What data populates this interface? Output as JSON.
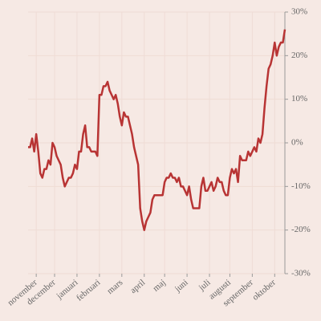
{
  "chart_data": {
    "type": "line",
    "series": [
      {
        "color": "#b83434",
        "values": [
          -1,
          -1,
          1,
          -2,
          2,
          -2,
          -7,
          -8,
          -6,
          -6,
          -4,
          -5,
          0,
          -1,
          -3,
          -4,
          -5,
          -8,
          -10,
          -9,
          -8,
          -8,
          -7,
          -5,
          -6,
          -2,
          -2,
          2,
          4,
          -1,
          -1,
          -2,
          -2,
          -2,
          -3,
          11,
          11,
          13,
          13,
          14,
          12,
          11,
          10,
          11,
          9,
          6,
          4,
          7,
          6,
          6,
          4,
          2,
          -1,
          -3,
          -5,
          -15,
          -18,
          -20,
          -18,
          -17,
          -16,
          -13,
          -12,
          -12,
          -12,
          -12,
          -12,
          -9,
          -8,
          -8,
          -7,
          -8,
          -8,
          -9,
          -8,
          -10,
          -10,
          -11,
          -12,
          -10,
          -13,
          -15,
          -15,
          -15,
          -15,
          -10,
          -8,
          -11,
          -11,
          -10,
          -9,
          -11,
          -10,
          -8,
          -9,
          -9,
          -11,
          -12,
          -12,
          -8,
          -6,
          -7,
          -6,
          -9,
          -3,
          -4,
          -4,
          -4,
          -2,
          -3,
          -2,
          -1,
          -2,
          1,
          0,
          2,
          8,
          13,
          17,
          18,
          20,
          23,
          20,
          22,
          23,
          23,
          26
        ]
      }
    ],
    "xlim": [
      0,
      126
    ],
    "xticks": [
      {
        "value": 4,
        "label": "november"
      },
      {
        "value": 13,
        "label": "december"
      },
      {
        "value": 24,
        "label": "januari"
      },
      {
        "value": 35,
        "label": "februari"
      },
      {
        "value": 46,
        "label": "mars"
      },
      {
        "value": 57,
        "label": "april"
      },
      {
        "value": 67,
        "label": "maj"
      },
      {
        "value": 78,
        "label": "juni"
      },
      {
        "value": 89,
        "label": "juli"
      },
      {
        "value": 99,
        "label": "augusti"
      },
      {
        "value": 110,
        "label": "september"
      },
      {
        "value": 121,
        "label": "oktober"
      }
    ],
    "ylim": [
      -30,
      30
    ],
    "yticks": [
      {
        "value": 30,
        "label": "30%"
      },
      {
        "value": 20,
        "label": "20%"
      },
      {
        "value": 10,
        "label": "10%"
      },
      {
        "value": 0,
        "label": "0%"
      },
      {
        "value": -10,
        "label": "-10%"
      },
      {
        "value": -20,
        "label": "-20%"
      },
      {
        "value": -30,
        "label": "-30%"
      }
    ],
    "grid": true
  }
}
